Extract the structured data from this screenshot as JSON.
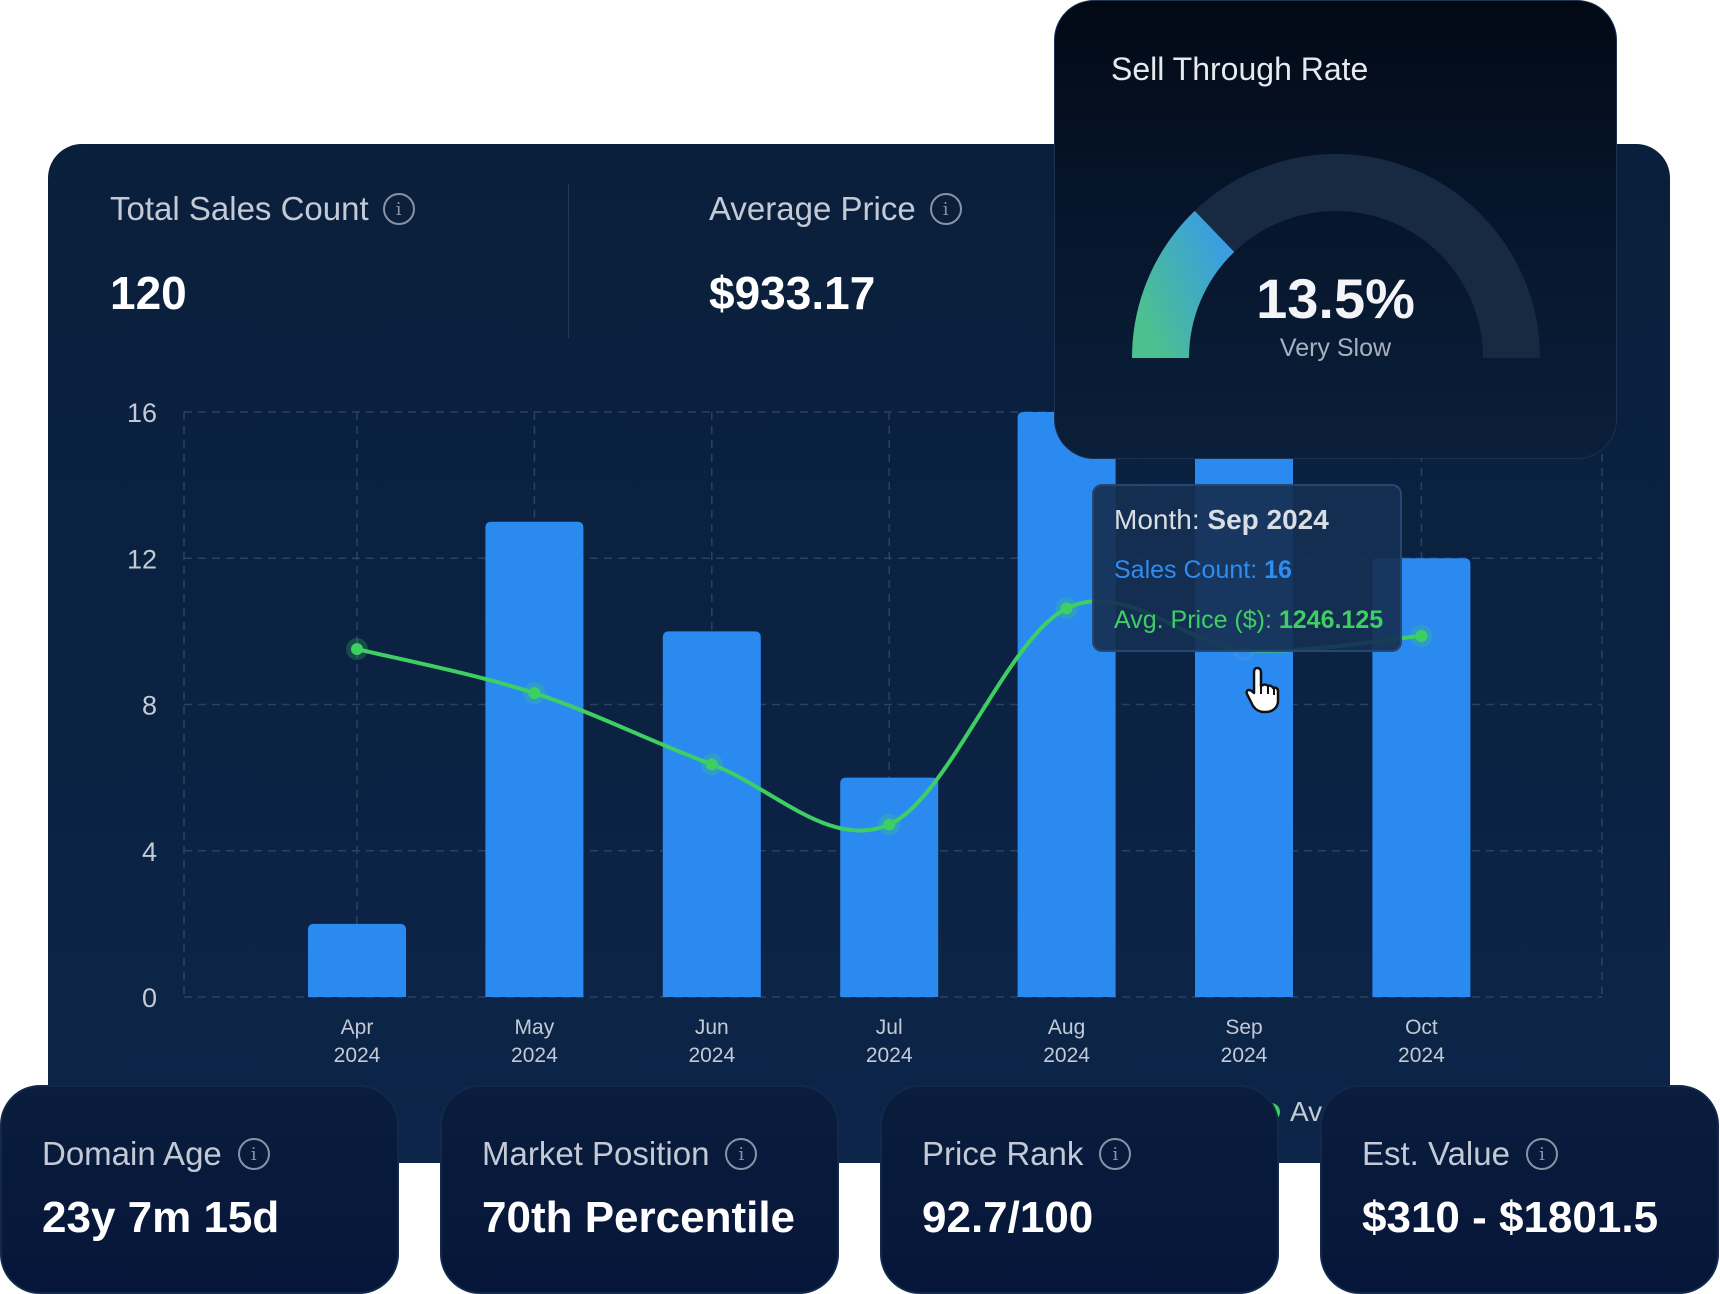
{
  "stats": {
    "total_sales": {
      "label": "Total Sales Count",
      "value": "120"
    },
    "average_price": {
      "label": "Average Price",
      "value": "$933.17"
    }
  },
  "gauge": {
    "title": "Sell Through Rate",
    "value": "13.5%",
    "percent": 13.5,
    "status": "Very Slow",
    "track_color": "#172a42",
    "fill_colors": [
      "#4cc08f",
      "#3a9ee0"
    ]
  },
  "tooltip": {
    "month_label": "Month: ",
    "month_value": "Sep 2024",
    "sales_label": "Sales Count: ",
    "sales_value": "16",
    "price_label": "Avg. Price ($): ",
    "price_value": "1246.125"
  },
  "legend": {
    "avg_price": "Avg. Price ($)"
  },
  "cards": [
    {
      "label": "Domain Age",
      "value": "23y 7m 15d"
    },
    {
      "label": "Market Position",
      "value": "70th Percentile"
    },
    {
      "label": "Price Rank",
      "value": "92.7/100"
    },
    {
      "label": "Est. Value",
      "value": "$310 - $1801.5"
    }
  ],
  "chart_data": {
    "type": "bar",
    "categories": [
      "Apr 2024",
      "May 2024",
      "Jun 2024",
      "Jul 2024",
      "Aug 2024",
      "Sep 2024",
      "Oct 2024"
    ],
    "category_lines": [
      [
        "Apr",
        "2024"
      ],
      [
        "May",
        "2024"
      ],
      [
        "Jun",
        "2024"
      ],
      [
        "Jul",
        "2024"
      ],
      [
        "Aug",
        "2024"
      ],
      [
        "Sep",
        "2024"
      ],
      [
        "Oct",
        "2024"
      ]
    ],
    "series": [
      {
        "name": "Sales Count",
        "type": "bar",
        "values": [
          2,
          13,
          10,
          6,
          16,
          16,
          12
        ],
        "color": "#2b8af0"
      },
      {
        "name": "Avg. Price ($)",
        "type": "line",
        "axis": "secondary",
        "values": [
          1249,
          1091,
          835,
          619,
          1395,
          1246.125,
          1296
        ],
        "color": "#3ecf63"
      }
    ],
    "yticks": [
      0,
      4,
      8,
      12,
      16
    ],
    "ylim": [
      0,
      16
    ],
    "y2lim": [
      0,
      2100
    ],
    "grid": true,
    "highlighted": "Sep 2024"
  }
}
